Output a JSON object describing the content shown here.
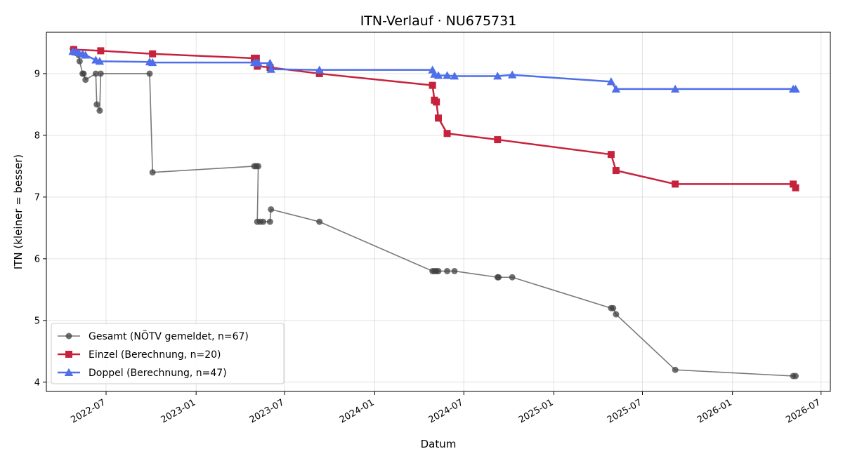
{
  "chart_data": {
    "type": "line",
    "title": "ITN-Verlauf · NU675731",
    "xlabel": "Datum",
    "ylabel": "ITN  (kleiner = besser)",
    "x_type": "date",
    "xlim": [
      "2022-03-01",
      "2026-07-20"
    ],
    "ylim": [
      3.85,
      9.67
    ],
    "grid": true,
    "legend_position": "lower-left",
    "x_ticks": [
      "2022-07-01",
      "2023-01-01",
      "2023-07-01",
      "2024-01-01",
      "2024-07-01",
      "2025-01-01",
      "2025-07-01",
      "2026-01-01",
      "2026-07-01"
    ],
    "x_tick_labels": [
      "2022-07",
      "2023-01",
      "2023-07",
      "2024-01",
      "2024-07",
      "2025-01",
      "2025-07",
      "2026-01",
      "2026-07"
    ],
    "y_ticks": [
      4,
      5,
      6,
      7,
      8,
      9
    ],
    "y_tick_labels": [
      "4",
      "5",
      "6",
      "7",
      "8",
      "9"
    ],
    "series": [
      {
        "name": "Gesamt (NÖTV gemeldet, n=67)",
        "color": "#404040",
        "marker": "circle",
        "points": [
          [
            "2022-04-24",
            9.4
          ],
          [
            "2022-04-30",
            9.35
          ],
          [
            "2022-05-06",
            9.3
          ],
          [
            "2022-05-08",
            9.2
          ],
          [
            "2022-05-14",
            9.0
          ],
          [
            "2022-05-16",
            9.0
          ],
          [
            "2022-05-20",
            8.9
          ],
          [
            "2022-06-10",
            9.0
          ],
          [
            "2022-06-12",
            8.5
          ],
          [
            "2022-06-18",
            8.4
          ],
          [
            "2022-06-20",
            9.0
          ],
          [
            "2022-09-28",
            9.0
          ],
          [
            "2022-10-04",
            7.4
          ],
          [
            "2023-04-30",
            7.5
          ],
          [
            "2023-05-04",
            7.5
          ],
          [
            "2023-05-08",
            7.5
          ],
          [
            "2023-05-06",
            6.6
          ],
          [
            "2023-05-12",
            6.6
          ],
          [
            "2023-05-18",
            6.6
          ],
          [
            "2023-06-01",
            6.6
          ],
          [
            "2023-06-03",
            6.8
          ],
          [
            "2023-09-10",
            6.6
          ],
          [
            "2024-04-28",
            5.8
          ],
          [
            "2024-05-02",
            5.8
          ],
          [
            "2024-05-06",
            5.8
          ],
          [
            "2024-05-10",
            5.8
          ],
          [
            "2024-05-28",
            5.8
          ],
          [
            "2024-06-12",
            5.8
          ],
          [
            "2024-09-08",
            5.7
          ],
          [
            "2024-09-10",
            5.7
          ],
          [
            "2024-10-08",
            5.7
          ],
          [
            "2025-04-28",
            5.2
          ],
          [
            "2025-05-02",
            5.2
          ],
          [
            "2025-05-08",
            5.1
          ],
          [
            "2025-09-06",
            4.2
          ],
          [
            "2026-05-05",
            4.1
          ],
          [
            "2026-05-10",
            4.1
          ]
        ]
      },
      {
        "name": "Einzel (Berechnung, n=20)",
        "color": "#c7223c",
        "marker": "square",
        "points": [
          [
            "2022-04-26",
            9.39
          ],
          [
            "2022-06-20",
            9.37
          ],
          [
            "2022-10-04",
            9.32
          ],
          [
            "2023-04-30",
            9.25
          ],
          [
            "2023-05-04",
            9.25
          ],
          [
            "2023-05-06",
            9.12
          ],
          [
            "2023-06-01",
            9.1
          ],
          [
            "2023-09-10",
            9.0
          ],
          [
            "2024-04-28",
            8.81
          ],
          [
            "2024-05-02",
            8.57
          ],
          [
            "2024-05-06",
            8.54
          ],
          [
            "2024-05-10",
            8.28
          ],
          [
            "2024-05-28",
            8.03
          ],
          [
            "2024-09-08",
            7.93
          ],
          [
            "2025-04-28",
            7.69
          ],
          [
            "2025-05-08",
            7.43
          ],
          [
            "2025-09-06",
            7.21
          ],
          [
            "2026-05-05",
            7.21
          ],
          [
            "2026-05-10",
            7.15
          ]
        ]
      },
      {
        "name": "Doppel (Berechnung, n=47)",
        "color": "#4f6fe8",
        "marker": "triangle",
        "points": [
          [
            "2022-04-24",
            9.36
          ],
          [
            "2022-04-30",
            9.35
          ],
          [
            "2022-05-06",
            9.34
          ],
          [
            "2022-05-14",
            9.32
          ],
          [
            "2022-05-20",
            9.3
          ],
          [
            "2022-06-10",
            9.22
          ],
          [
            "2022-06-18",
            9.2
          ],
          [
            "2022-09-28",
            9.19
          ],
          [
            "2022-10-04",
            9.18
          ],
          [
            "2023-04-30",
            9.18
          ],
          [
            "2023-05-04",
            9.18
          ],
          [
            "2023-05-08",
            9.17
          ],
          [
            "2023-06-01",
            9.17
          ],
          [
            "2023-06-03",
            9.07
          ],
          [
            "2023-09-10",
            9.06
          ],
          [
            "2024-04-28",
            9.06
          ],
          [
            "2024-05-02",
            8.99
          ],
          [
            "2024-05-10",
            8.97
          ],
          [
            "2024-05-28",
            8.97
          ],
          [
            "2024-06-12",
            8.96
          ],
          [
            "2024-09-08",
            8.96
          ],
          [
            "2024-10-08",
            8.98
          ],
          [
            "2025-04-28",
            8.87
          ],
          [
            "2025-05-08",
            8.75
          ],
          [
            "2025-09-06",
            8.75
          ],
          [
            "2026-05-05",
            8.75
          ],
          [
            "2026-05-10",
            8.75
          ]
        ]
      }
    ]
  }
}
